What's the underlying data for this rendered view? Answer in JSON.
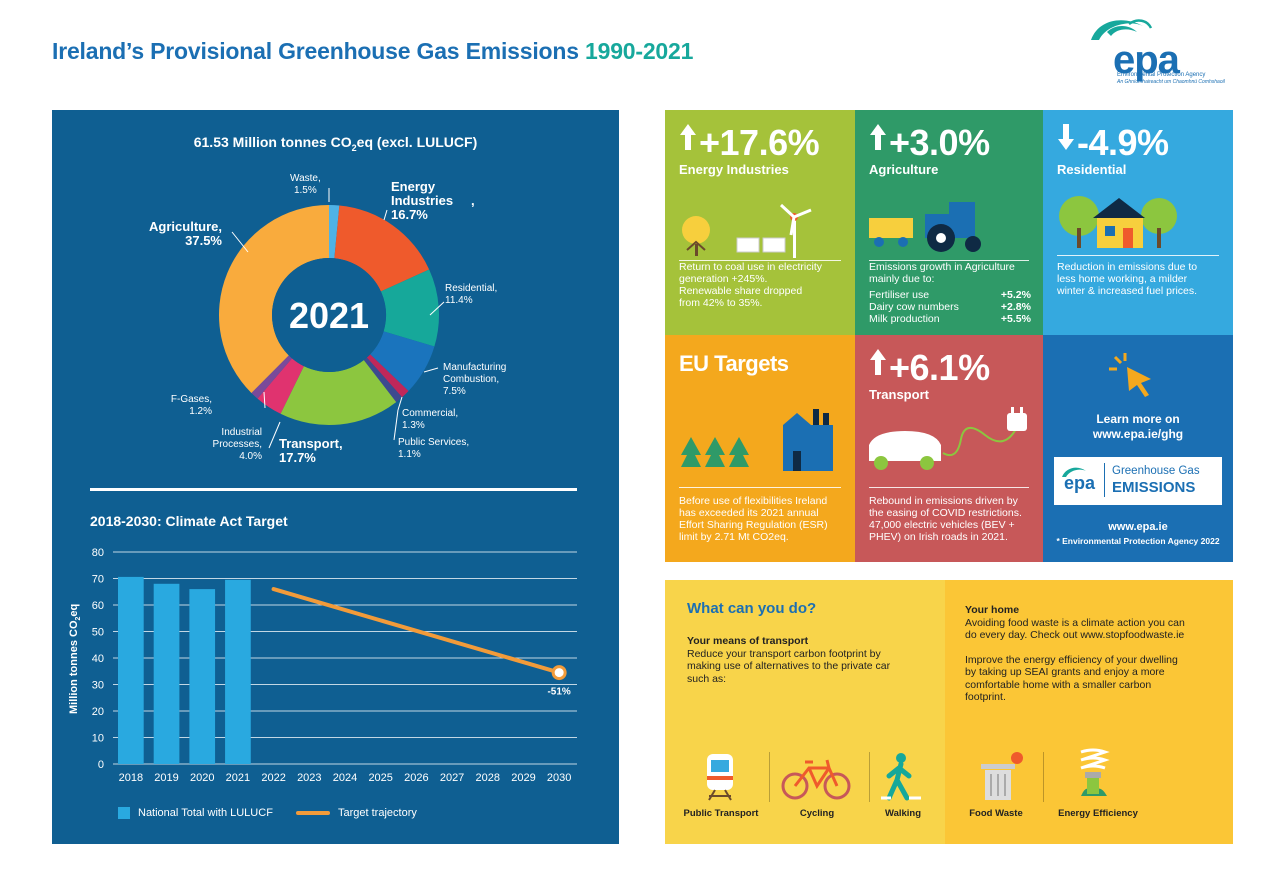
{
  "header": {
    "title_main": "Ireland’s Provisional Greenhouse Gas Emissions",
    "title_years": "1990-2021",
    "logo_word": "epa",
    "logo_sub1": "Environmental Protection Agency",
    "logo_sub2": "An Ghníomhaireacht um Chaomhnú Comhshaoil"
  },
  "donut": {
    "title_pre": "61.53 Million tonnes CO",
    "title_sub": "2",
    "title_post": "eq (excl. LULUCF)",
    "center_label": "2021"
  },
  "chart_data": [
    {
      "type": "pie",
      "title": "61.53 Million tonnes CO2eq (excl. LULUCF)",
      "center": "2021",
      "slices": [
        {
          "label": "Waste",
          "value": 1.5,
          "display": "1.5%",
          "color": "#4fb3e6"
        },
        {
          "label": "Energy Industries",
          "value": 16.7,
          "display": "16.7%",
          "color": "#ef5a2c"
        },
        {
          "label": "Residential",
          "value": 11.4,
          "display": "11.4%",
          "color": "#16a89a"
        },
        {
          "label": "Manufacturing Combustion",
          "value": 7.5,
          "display": "7.5%",
          "color": "#1a74bd"
        },
        {
          "label": "Commercial",
          "value": 1.3,
          "display": "1.3%",
          "color": "#c0275a"
        },
        {
          "label": "Public Services",
          "value": 1.1,
          "display": "1.1%",
          "color": "#3d4a8f"
        },
        {
          "label": "Transport",
          "value": 17.7,
          "display": "17.7%",
          "color": "#8cc63f"
        },
        {
          "label": "Industrial Processes",
          "value": 4.0,
          "display": "4.0%",
          "color": "#e0336f"
        },
        {
          "label": "F-Gases",
          "value": 1.2,
          "display": "1.2%",
          "color": "#7a4a9a"
        },
        {
          "label": "Agriculture",
          "value": 37.5,
          "display": "37.5%",
          "color": "#f9ab3d"
        }
      ]
    },
    {
      "type": "bar",
      "title": "2018-2030: Climate Act Target",
      "ylabel": "Million tonnes CO2eq",
      "ylim": [
        0,
        80
      ],
      "yticks": [
        0,
        10,
        20,
        30,
        40,
        50,
        60,
        70,
        80
      ],
      "categories": [
        "2018",
        "2019",
        "2020",
        "2021",
        "2022",
        "2023",
        "2024",
        "2025",
        "2026",
        "2027",
        "2028",
        "2029",
        "2030"
      ],
      "series": [
        {
          "name": "National Total with LULUCF",
          "kind": "bar",
          "color": "#29a9e0",
          "values": [
            70.6,
            68.0,
            66.0,
            69.5,
            null,
            null,
            null,
            null,
            null,
            null,
            null,
            null,
            null
          ]
        },
        {
          "name": "Target trajectory",
          "kind": "line",
          "color": "#f29b3a",
          "values": [
            null,
            null,
            null,
            null,
            66.0,
            null,
            null,
            null,
            null,
            null,
            null,
            null,
            34.5
          ]
        }
      ],
      "annotations": [
        {
          "x": "2030",
          "text": "-51%"
        }
      ]
    }
  ],
  "bar_chart": {
    "title": "2018-2030: Climate Act Target",
    "ylabel_pre": "Million tonnes CO",
    "ylabel_sub": "2",
    "ylabel_post": "eq",
    "legend_bar": "National Total with LULUCF",
    "legend_line": "Target trajectory",
    "annotation": "-51%"
  },
  "tiles": {
    "energy": {
      "pct": "+17.6%",
      "name": "Energy Industries",
      "color": "#a5c23a",
      "lines": [
        "Return to coal use in electricity",
        "generation +245%.",
        "Renewable share dropped",
        "from 42% to 35%."
      ]
    },
    "agriculture": {
      "pct": "+3.0%",
      "name": "Agriculture",
      "color": "#2f9a68",
      "intro": [
        "Emissions growth in Agriculture",
        "mainly due to:"
      ],
      "rows": [
        {
          "label": "Fertiliser use",
          "value": "+5.2%"
        },
        {
          "label": "Dairy cow numbers",
          "value": "+2.8%"
        },
        {
          "label": "Milk production",
          "value": "+5.5%"
        }
      ]
    },
    "residential": {
      "pct": "-4.9%",
      "name": "Residential",
      "color": "#35a9df",
      "lines": [
        "Reduction in emissions due to",
        "less home working, a milder",
        "winter & increased fuel prices."
      ]
    },
    "eu": {
      "title": "EU Targets",
      "color": "#f4a81d",
      "lines": [
        "Before use of flexibilities Ireland",
        "has exceeded its 2021 annual",
        "Effort Sharing Regulation (ESR)",
        "limit by 2.71 Mt CO2eq."
      ]
    },
    "transport": {
      "pct": "+6.1%",
      "name": "Transport",
      "color": "#c75859",
      "lines": [
        "Rebound in emissions driven by",
        "the easing of COVID restrictions.",
        "47,000 electric vehicles (BEV +",
        "PHEV) on Irish roads in 2021."
      ]
    },
    "learn": {
      "color": "#1b6fb3",
      "line1": "Learn more on",
      "line2": "www.epa.ie/ghg",
      "badge_word": "epa",
      "badge_top": "Greenhouse Gas",
      "badge_bottom": "EMISSIONS",
      "url": "www.epa.ie",
      "copyright": "* Environmental Protection Agency 2022"
    }
  },
  "actions": {
    "heading": "What can you do?",
    "transport_heading": "Your means of transport",
    "transport_text": [
      "Reduce your transport carbon footprint by",
      "making use of alternatives to the private car",
      "such as:"
    ],
    "home_heading": "Your home",
    "home_text1": [
      "Avoiding food waste is a climate action you can",
      "do every day. Check out www.stopfoodwaste.ie"
    ],
    "home_text2": [
      "Improve the energy efficiency of your dwelling",
      "by taking up SEAI grants and enjoy a more",
      "comfortable home with a smaller carbon",
      "footprint."
    ],
    "icons": [
      "Public Transport",
      "Cycling",
      "Walking",
      "Food Waste",
      "Energy Efficiency"
    ]
  }
}
